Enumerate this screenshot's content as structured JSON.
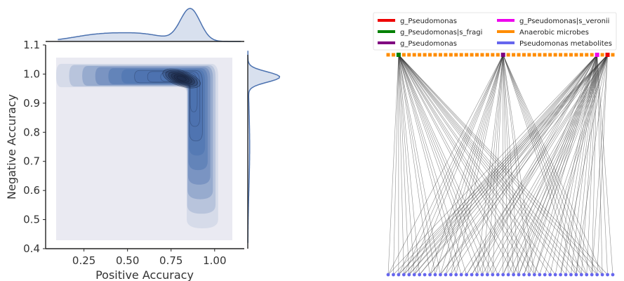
{
  "colors": {
    "kde_fill": "#4c72b0",
    "kde_panel": "#eaeaf2",
    "marginal_line": "#4c72b0"
  },
  "chart_data": [
    {
      "type": "kde-joint",
      "xlabel": "Positive Accuracy",
      "ylabel": "Negative Accuracy",
      "xticks": [
        "0.25",
        "0.50",
        "0.75",
        "1.00"
      ],
      "xtick_values": [
        0.25,
        0.5,
        0.75,
        1.0
      ],
      "yticks": [
        "0.4",
        "0.5",
        "0.6",
        "0.7",
        "0.8",
        "0.9",
        "1.0",
        "1.1"
      ],
      "ytick_values": [
        0.4,
        0.5,
        0.6,
        0.7,
        0.8,
        0.9,
        1.0,
        1.1
      ],
      "xlim": [
        0.03,
        1.17
      ],
      "ylim": [
        0.4,
        1.1
      ],
      "density_peak": {
        "x": 0.81,
        "y": 0.985
      },
      "grid": false
    },
    {
      "type": "bipartite-network",
      "legend": [
        {
          "label": "g_Pseudomonas",
          "color": "#ee0000"
        },
        {
          "label": "g_Pseudomonas|s_veronii",
          "color": "#ee00ee"
        },
        {
          "label": "g_Pseudomonas|s_fragi",
          "color": "#008000"
        },
        {
          "label": "Anaerobic microbes",
          "color": "#ff8c00"
        },
        {
          "label": "g_Pseudomonas",
          "color": "#800080"
        },
        {
          "label": "Pseudomonas metabolites",
          "color": "#6666ee"
        }
      ],
      "top_node_count": 44,
      "bottom_node_count": 44,
      "hubs": [
        {
          "index": 2,
          "color": "#008000"
        },
        {
          "index": 22,
          "color": "#800080"
        },
        {
          "index": 40,
          "color": "#ee00ee"
        },
        {
          "index": 42,
          "color": "#ee0000"
        }
      ]
    }
  ]
}
